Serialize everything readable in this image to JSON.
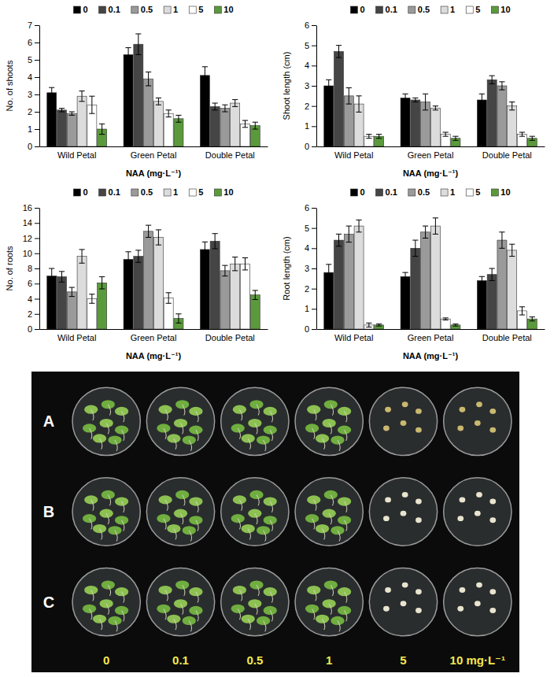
{
  "chart_data": [
    {
      "type": "bar",
      "y_label": "No. of shoots",
      "x_label": "NAA (mg·L⁻¹)",
      "categories": [
        "Wild Petal",
        "Green Petal",
        "Double Petal"
      ],
      "ylim": [
        0,
        7
      ],
      "yticks": [
        0,
        1,
        2,
        3,
        4,
        5,
        6,
        7
      ],
      "grid": false,
      "legend": "top",
      "series": [
        {
          "name": "0",
          "color": "#000000",
          "values": [
            3.1,
            5.3,
            4.1
          ],
          "errors": [
            0.3,
            0.4,
            0.5
          ]
        },
        {
          "name": "0.1",
          "color": "#454545",
          "values": [
            2.1,
            5.9,
            2.3
          ],
          "errors": [
            0.1,
            0.6,
            0.2
          ]
        },
        {
          "name": "0.5",
          "color": "#9a9a9a",
          "values": [
            1.9,
            3.9,
            2.2
          ],
          "errors": [
            0.1,
            0.4,
            0.2
          ]
        },
        {
          "name": "1",
          "color": "#dcdcdc",
          "values": [
            2.9,
            2.6,
            2.5
          ],
          "errors": [
            0.3,
            0.2,
            0.2
          ]
        },
        {
          "name": "5",
          "color": "#ffffff",
          "values": [
            2.4,
            1.9,
            1.3
          ],
          "errors": [
            0.5,
            0.2,
            0.2
          ]
        },
        {
          "name": "10",
          "color": "#5a9a3c",
          "values": [
            1.0,
            1.6,
            1.2
          ],
          "errors": [
            0.3,
            0.2,
            0.2
          ]
        }
      ]
    },
    {
      "type": "bar",
      "y_label": "Shoot length (cm)",
      "x_label": "NAA (mg·L⁻¹)",
      "categories": [
        "Wild Petal",
        "Green Petal",
        "Double Petal"
      ],
      "ylim": [
        0,
        6
      ],
      "yticks": [
        0,
        1,
        2,
        3,
        4,
        5,
        6
      ],
      "grid": false,
      "legend": "top",
      "series": [
        {
          "name": "0",
          "color": "#000000",
          "values": [
            3.0,
            2.4,
            2.3
          ],
          "errors": [
            0.3,
            0.2,
            0.3
          ]
        },
        {
          "name": "0.1",
          "color": "#454545",
          "values": [
            4.7,
            2.3,
            3.3
          ],
          "errors": [
            0.3,
            0.1,
            0.2
          ]
        },
        {
          "name": "0.5",
          "color": "#9a9a9a",
          "values": [
            2.5,
            2.2,
            3.0
          ],
          "errors": [
            0.4,
            0.4,
            0.2
          ]
        },
        {
          "name": "1",
          "color": "#dcdcdc",
          "values": [
            2.1,
            1.9,
            2.0
          ],
          "errors": [
            0.4,
            0.1,
            0.2
          ]
        },
        {
          "name": "5",
          "color": "#ffffff",
          "values": [
            0.5,
            0.6,
            0.6
          ],
          "errors": [
            0.1,
            0.1,
            0.1
          ]
        },
        {
          "name": "10",
          "color": "#5a9a3c",
          "values": [
            0.5,
            0.4,
            0.4
          ],
          "errors": [
            0.1,
            0.1,
            0.1
          ]
        }
      ]
    },
    {
      "type": "bar",
      "y_label": "No. of roots",
      "x_label": "NAA (mg·L⁻¹)",
      "categories": [
        "Wild Petal",
        "Green Petal",
        "Double Petal"
      ],
      "ylim": [
        0,
        16
      ],
      "yticks": [
        0,
        2,
        4,
        6,
        8,
        10,
        12,
        14,
        16
      ],
      "grid": false,
      "legend": "top",
      "series": [
        {
          "name": "0",
          "color": "#000000",
          "values": [
            7.0,
            9.2,
            10.5
          ],
          "errors": [
            1.0,
            1.0,
            1.0
          ]
        },
        {
          "name": "0.1",
          "color": "#454545",
          "values": [
            6.9,
            9.6,
            11.6
          ],
          "errors": [
            0.7,
            0.8,
            1.0
          ]
        },
        {
          "name": "0.5",
          "color": "#9a9a9a",
          "values": [
            4.9,
            12.9,
            7.7
          ],
          "errors": [
            0.6,
            0.8,
            0.7
          ]
        },
        {
          "name": "1",
          "color": "#dcdcdc",
          "values": [
            9.6,
            12.1,
            8.6
          ],
          "errors": [
            0.9,
            1.0,
            0.9
          ]
        },
        {
          "name": "5",
          "color": "#ffffff",
          "values": [
            4.0,
            4.1,
            8.6
          ],
          "errors": [
            0.6,
            0.7,
            0.8
          ]
        },
        {
          "name": "10",
          "color": "#5a9a3c",
          "values": [
            6.1,
            1.4,
            4.5
          ],
          "errors": [
            0.8,
            0.6,
            0.6
          ]
        }
      ]
    },
    {
      "type": "bar",
      "y_label": "Root length (cm)",
      "x_label": "NAA (mg·L⁻¹)",
      "categories": [
        "Wild Petal",
        "Green Petal",
        "Double Petal"
      ],
      "ylim": [
        0,
        6
      ],
      "yticks": [
        0,
        1,
        2,
        3,
        4,
        5,
        6
      ],
      "grid": false,
      "legend": "top",
      "series": [
        {
          "name": "0",
          "color": "#000000",
          "values": [
            2.8,
            2.6,
            2.4
          ],
          "errors": [
            0.4,
            0.2,
            0.2
          ]
        },
        {
          "name": "0.1",
          "color": "#454545",
          "values": [
            4.4,
            4.0,
            2.7
          ],
          "errors": [
            0.3,
            0.4,
            0.3
          ]
        },
        {
          "name": "0.5",
          "color": "#9a9a9a",
          "values": [
            4.7,
            4.8,
            4.4
          ],
          "errors": [
            0.4,
            0.3,
            0.4
          ]
        },
        {
          "name": "1",
          "color": "#dcdcdc",
          "values": [
            5.1,
            5.1,
            3.9
          ],
          "errors": [
            0.3,
            0.4,
            0.3
          ]
        },
        {
          "name": "5",
          "color": "#ffffff",
          "values": [
            0.2,
            0.5,
            0.9
          ],
          "errors": [
            0.1,
            0.05,
            0.2
          ]
        },
        {
          "name": "10",
          "color": "#5a9a3c",
          "values": [
            0.2,
            0.2,
            0.5
          ],
          "errors": [
            0.05,
            0.05,
            0.1
          ]
        }
      ]
    }
  ],
  "photo": {
    "row_labels": [
      "A",
      "B",
      "C"
    ],
    "column_labels": [
      "0",
      "0.1",
      "0.5",
      "1",
      "5",
      "10 mg·L⁻¹"
    ]
  }
}
